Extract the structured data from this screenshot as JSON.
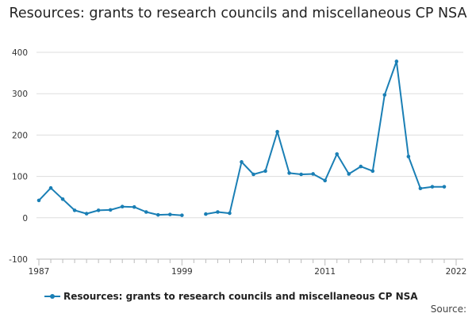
{
  "chart_data": {
    "type": "line",
    "title": "Resources: grants to research councils and miscellaneous CP NSA",
    "xlabel": "",
    "ylabel": "",
    "xlim": [
      1986.8,
      2022.6
    ],
    "ylim": [
      -100,
      400
    ],
    "y_ticks": [
      -100,
      0,
      100,
      200,
      300,
      400
    ],
    "x_tick_labels": [
      "1987",
      "1999",
      "2011",
      "2022"
    ],
    "grid": "horizontal",
    "legend_position": "bottom-left",
    "colors": {
      "series": "#1a7fb5",
      "grid": "#dddddd",
      "axis": "#bbbbbb"
    },
    "series": [
      {
        "name": "Resources: grants to research councils and miscellaneous CP NSA",
        "segments": [
          {
            "x": [
              1987,
              1988,
              1989,
              1990,
              1991,
              1992,
              1993,
              1994,
              1995,
              1996,
              1997,
              1998,
              1999
            ],
            "y": [
              42,
              72,
              45,
              18,
              10,
              18,
              19,
              27,
              26,
              14,
              7,
              8,
              6
            ]
          },
          {
            "x": [
              2001,
              2002,
              2003,
              2004,
              2005,
              2006,
              2007,
              2008,
              2009,
              2010,
              2011,
              2012,
              2013,
              2014,
              2015,
              2016,
              2017,
              2018,
              2019,
              2020,
              2021
            ],
            "y": [
              9,
              14,
              11,
              135,
              105,
              113,
              208,
              108,
              105,
              106,
              90,
              154,
              106,
              124,
              113,
              297,
              378,
              148,
              71,
              75,
              75
            ]
          }
        ]
      }
    ]
  },
  "legend": {
    "label": "Resources: grants to research councils and miscellaneous CP NSA"
  },
  "footer": {
    "source": "Source:"
  }
}
